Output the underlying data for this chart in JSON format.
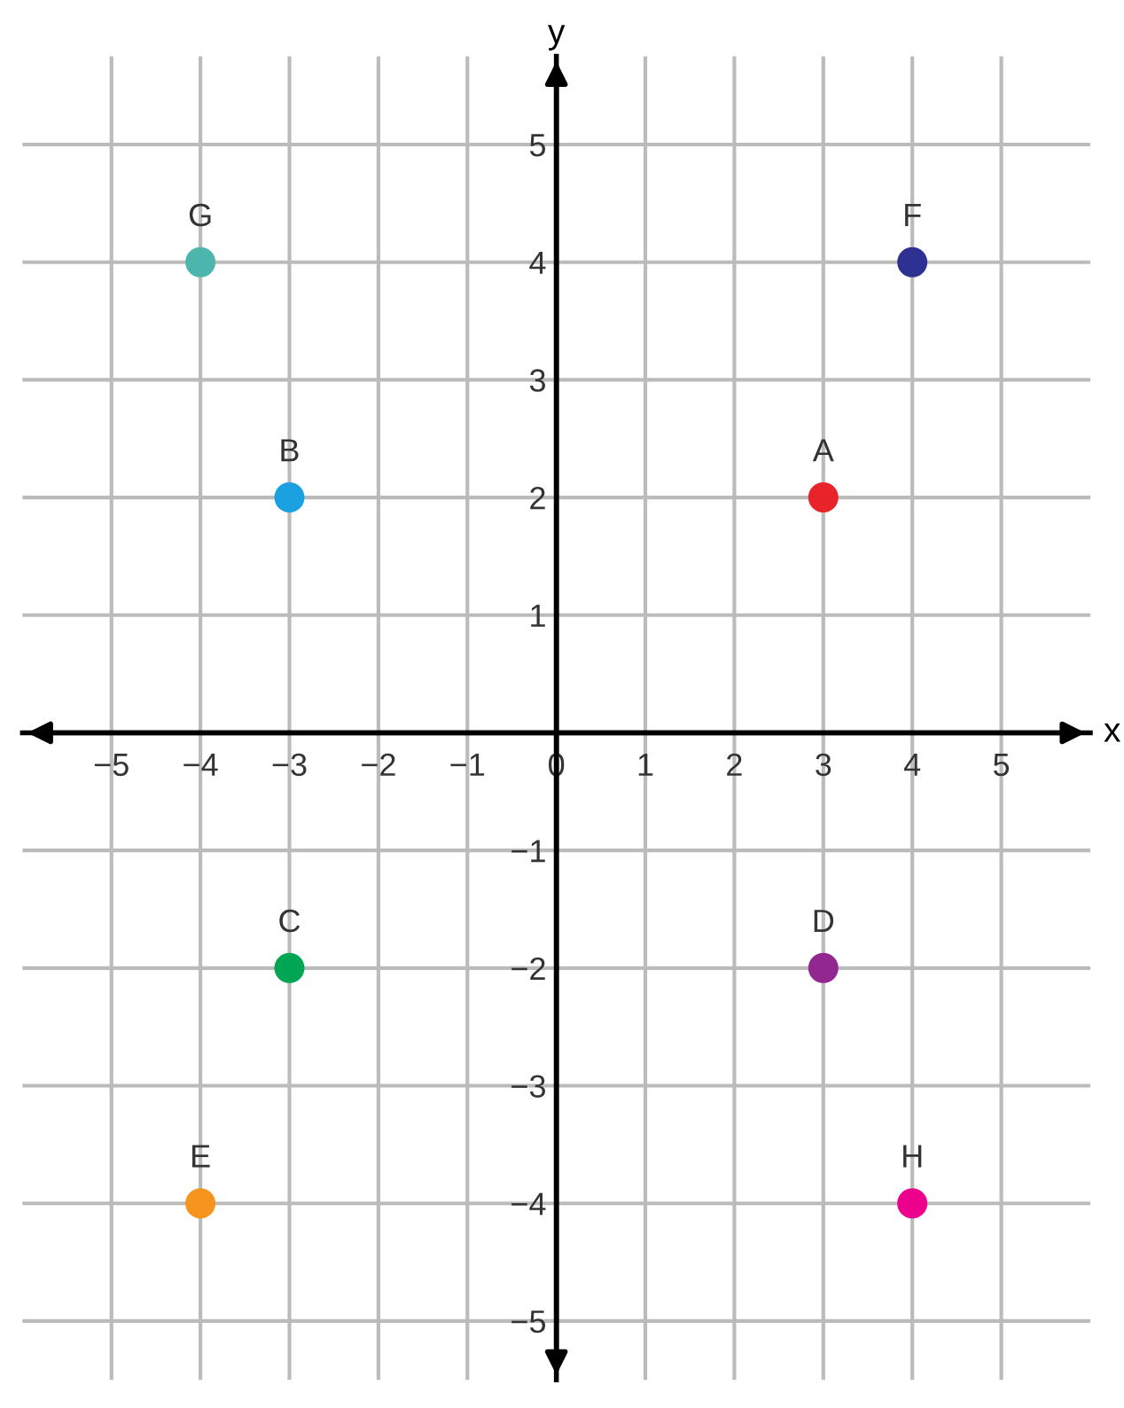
{
  "chart_data": {
    "type": "scatter",
    "xlabel": "x",
    "ylabel": "y",
    "x": [
      3,
      -3,
      -3,
      3,
      -4,
      4,
      -4,
      4
    ],
    "series": [
      {
        "values": [
          2,
          2,
          -2,
          -2,
          -4,
          4,
          4,
          -4
        ],
        "colors": [
          "#e8232a",
          "#1ba1e2",
          "#00a651",
          "#92278f",
          "#f7941d",
          "#2e3192",
          "#4db6ac",
          "#ec008c"
        ]
      }
    ],
    "annotations": [
      {
        "text": "A",
        "x": 3,
        "y": 2
      },
      {
        "text": "B",
        "x": -3,
        "y": 2
      },
      {
        "text": "C",
        "x": -3,
        "y": -2
      },
      {
        "text": "D",
        "x": 3,
        "y": -2
      },
      {
        "text": "E",
        "x": -4,
        "y": -4
      },
      {
        "text": "F",
        "x": 4,
        "y": 4
      },
      {
        "text": "G",
        "x": -4,
        "y": 4
      },
      {
        "text": "H",
        "x": 4,
        "y": -4
      }
    ],
    "xlim": [
      -6,
      6
    ],
    "ylim": [
      -5.5,
      5.75
    ],
    "xticks": [
      -5,
      -4,
      -3,
      -2,
      -1,
      {
        "value": 0,
        "label": "0"
      },
      1,
      2,
      3,
      4,
      5
    ],
    "yticks": [
      -5,
      -4,
      -3,
      -2,
      -1,
      {
        "value": 0,
        "label": null
      },
      1,
      2,
      3,
      4,
      5
    ],
    "grid": true,
    "marker": "circle"
  }
}
